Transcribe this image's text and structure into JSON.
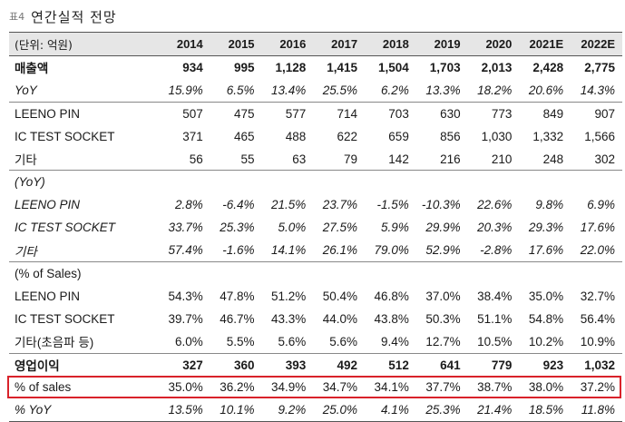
{
  "caption": {
    "number": "표4",
    "title": "연간실적 전망"
  },
  "header": [
    "(단위: 억원)",
    "2014",
    "2015",
    "2016",
    "2017",
    "2018",
    "2019",
    "2020",
    "2021E",
    "2022E"
  ],
  "rows": [
    {
      "id": "sales",
      "style": "bold",
      "label": "매출액",
      "values": [
        "934",
        "995",
        "1,128",
        "1,415",
        "1,504",
        "1,703",
        "2,013",
        "2,428",
        "2,775"
      ]
    },
    {
      "id": "sales-yoy",
      "style": "italic",
      "label": "YoY",
      "values": [
        "15.9%",
        "6.5%",
        "13.4%",
        "25.5%",
        "6.2%",
        "13.3%",
        "18.2%",
        "20.6%",
        "14.3%"
      ]
    },
    {
      "id": "leeno-pin",
      "style": "sep",
      "label": "LEENO PIN",
      "values": [
        "507",
        "475",
        "577",
        "714",
        "703",
        "630",
        "773",
        "849",
        "907"
      ]
    },
    {
      "id": "ic-test-socket",
      "style": "",
      "label": "IC TEST SOCKET",
      "values": [
        "371",
        "465",
        "488",
        "622",
        "659",
        "856",
        "1,030",
        "1,332",
        "1,566"
      ]
    },
    {
      "id": "other",
      "style": "",
      "label": "기타",
      "values": [
        "56",
        "55",
        "63",
        "79",
        "142",
        "216",
        "210",
        "248",
        "302"
      ]
    },
    {
      "id": "yoy-heading",
      "style": "italic sep",
      "label": "(YoY)",
      "values": [
        "",
        "",
        "",
        "",
        "",
        "",
        "",
        "",
        ""
      ]
    },
    {
      "id": "leeno-pin-yoy",
      "style": "italic",
      "label": "LEENO PIN",
      "values": [
        "2.8%",
        "-6.4%",
        "21.5%",
        "23.7%",
        "-1.5%",
        "-10.3%",
        "22.6%",
        "9.8%",
        "6.9%"
      ]
    },
    {
      "id": "ic-test-socket-yoy",
      "style": "italic",
      "label": "IC TEST SOCKET",
      "values": [
        "33.7%",
        "25.3%",
        "5.0%",
        "27.5%",
        "5.9%",
        "29.9%",
        "20.3%",
        "29.3%",
        "17.6%"
      ]
    },
    {
      "id": "other-yoy",
      "style": "italic",
      "label": "기타",
      "values": [
        "57.4%",
        "-1.6%",
        "14.1%",
        "26.1%",
        "79.0%",
        "52.9%",
        "-2.8%",
        "17.6%",
        "22.0%"
      ]
    },
    {
      "id": "share-heading",
      "style": "sep",
      "label": "(% of Sales)",
      "values": [
        "",
        "",
        "",
        "",
        "",
        "",
        "",
        "",
        ""
      ]
    },
    {
      "id": "leeno-pin-share",
      "style": "",
      "label": "LEENO PIN",
      "values": [
        "54.3%",
        "47.8%",
        "51.2%",
        "50.4%",
        "46.8%",
        "37.0%",
        "38.4%",
        "35.0%",
        "32.7%"
      ]
    },
    {
      "id": "ic-test-socket-share",
      "style": "",
      "label": "IC TEST SOCKET",
      "values": [
        "39.7%",
        "46.7%",
        "43.3%",
        "44.0%",
        "43.8%",
        "50.3%",
        "51.1%",
        "54.8%",
        "56.4%"
      ]
    },
    {
      "id": "other-share",
      "style": "",
      "label": "기타(초음파 등)",
      "values": [
        "6.0%",
        "5.5%",
        "5.6%",
        "5.6%",
        "9.4%",
        "12.7%",
        "10.5%",
        "10.2%",
        "10.9%"
      ]
    },
    {
      "id": "operating-profit",
      "style": "bold sep",
      "label": "영업이익",
      "values": [
        "327",
        "360",
        "393",
        "492",
        "512",
        "641",
        "779",
        "923",
        "1,032"
      ]
    },
    {
      "id": "op-margin",
      "style": "",
      "label": "% of sales",
      "values": [
        "35.0%",
        "36.2%",
        "34.9%",
        "34.7%",
        "34.1%",
        "37.7%",
        "38.7%",
        "38.0%",
        "37.2%"
      ]
    },
    {
      "id": "op-yoy",
      "style": "italic last",
      "label": "% YoY",
      "values": [
        "13.5%",
        "10.1%",
        "9.2%",
        "25.0%",
        "4.1%",
        "25.3%",
        "21.4%",
        "18.5%",
        "11.8%"
      ]
    }
  ],
  "highlight": {
    "row": "op-margin",
    "color": "#d9222a"
  }
}
